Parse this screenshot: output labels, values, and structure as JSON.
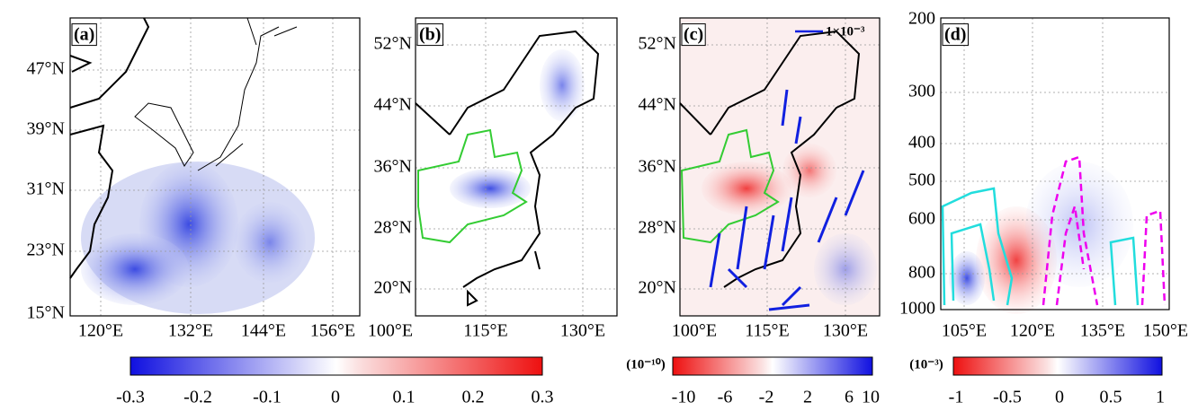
{
  "panels": [
    {
      "label": "(a)",
      "yticks": [
        "47°N",
        "39°N",
        "31°N",
        "23°N",
        "15°N"
      ],
      "xticks": [
        "120°E",
        "132°E",
        "144°E",
        "156°E"
      ]
    },
    {
      "label": "(b)",
      "yticks": [
        "52°N",
        "44°N",
        "36°N",
        "28°N",
        "20°N"
      ],
      "xticks": [
        "100°E",
        "115°E",
        "130°E"
      ]
    },
    {
      "label": "(c)",
      "yticks": [
        "52°N",
        "44°N",
        "36°N",
        "28°N",
        "20°N"
      ],
      "xticks": [
        "100°E",
        "115°E",
        "130°E"
      ],
      "vector_key": "1×10⁻³"
    },
    {
      "label": "(d)",
      "yticks": [
        "200",
        "300",
        "400",
        "500",
        "600",
        "800",
        "1000"
      ],
      "xticks": [
        "105°E",
        "120°E",
        "135°E",
        "150°E"
      ]
    }
  ],
  "colorbars": [
    {
      "ticks": [
        "-0.3",
        "-0.2",
        "-0.1",
        "0",
        "0.1",
        "0.2",
        "0.3"
      ]
    },
    {
      "unit": "(10⁻¹⁰)",
      "ticks": [
        "-10",
        "-6",
        "-2",
        "2",
        "6",
        "10"
      ]
    },
    {
      "unit": "(10⁻³)",
      "ticks": [
        "-1",
        "-0.5",
        "0",
        "0.5",
        "1"
      ]
    }
  ]
}
